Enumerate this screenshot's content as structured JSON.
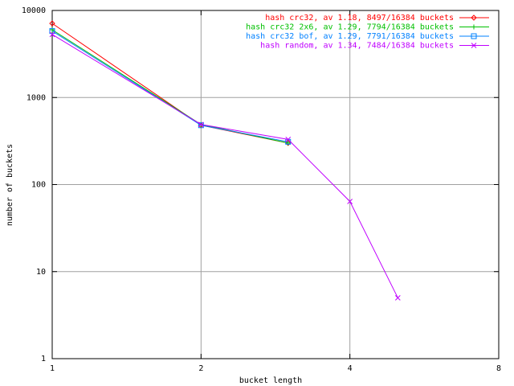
{
  "chart_data": {
    "type": "line",
    "xlabel": "bucket length",
    "ylabel": "number of buckets",
    "x": [
      1,
      2,
      3,
      4,
      5
    ],
    "series": [
      {
        "name": "hash crc32, av 1.18, 8497/16384 buckets",
        "color": "#ff0000",
        "marker": "diamond",
        "values": [
          7100,
          480,
          300,
          null,
          null
        ]
      },
      {
        "name": "hash crc32 2x6, av 1.29, 7794/16384 buckets",
        "color": "#00c000",
        "marker": "plus",
        "values": [
          6000,
          490,
          300,
          null,
          null
        ]
      },
      {
        "name": "hash crc32 bof, av 1.29, 7791/16384 buckets",
        "color": "#0080ff",
        "marker": "square",
        "values": [
          5800,
          480,
          310,
          null,
          null
        ]
      },
      {
        "name": "hash random, av 1.34, 7484/16384 buckets",
        "color": "#c000ff",
        "marker": "cross",
        "values": [
          5300,
          490,
          330,
          64,
          5
        ]
      }
    ],
    "xlog": 2,
    "ylog": 10,
    "xlim": [
      1,
      8
    ],
    "ylim": [
      1,
      10000
    ],
    "xticks": [
      1,
      2,
      4,
      8
    ],
    "yticks": [
      1,
      10,
      100,
      1000,
      10000
    ],
    "grid": true,
    "legend": "top-right"
  }
}
